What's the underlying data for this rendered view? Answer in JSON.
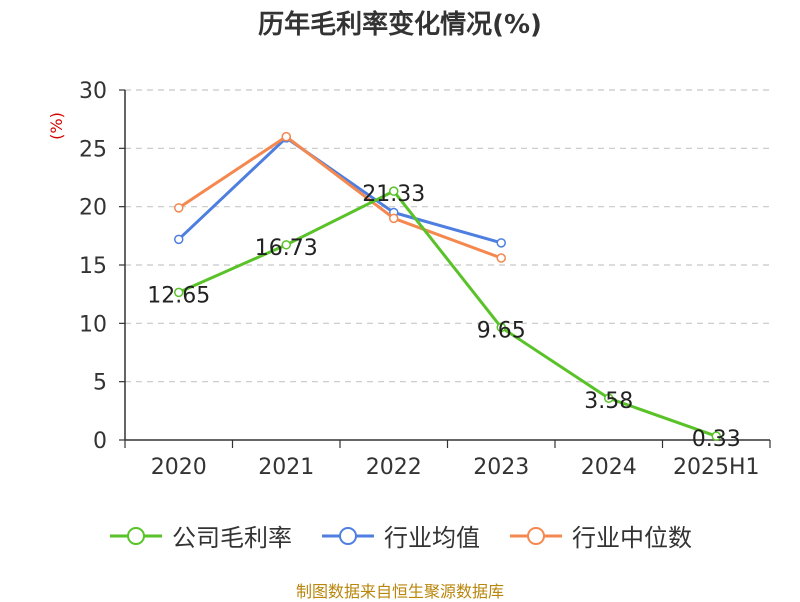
{
  "chart_data": {
    "type": "line",
    "title": "历年毛利率变化情况(%)",
    "ylabel": "(%)",
    "xlabel": "",
    "categories": [
      "2020",
      "2021",
      "2022",
      "2023",
      "2024",
      "2025H1"
    ],
    "ylim": [
      0,
      30
    ],
    "yticks": [
      0,
      5,
      10,
      15,
      20,
      25,
      30
    ],
    "grid": true,
    "legend_position": "bottom",
    "series": [
      {
        "name": "公司毛利率",
        "color": "#5ac229",
        "values": [
          12.65,
          16.73,
          21.33,
          9.65,
          3.58,
          0.33
        ],
        "labels": [
          "12.65",
          "16.73",
          "21.33",
          "9.65",
          "3.58",
          "0.33"
        ]
      },
      {
        "name": "行业均值",
        "color": "#4e7fe0",
        "values": [
          17.2,
          25.9,
          19.5,
          16.9,
          null,
          null
        ]
      },
      {
        "name": "行业中位数",
        "color": "#f4884f",
        "values": [
          19.9,
          26.0,
          19.0,
          15.6,
          null,
          null
        ]
      }
    ]
  },
  "footer": {
    "source": "制图数据来自恒生聚源数据库"
  }
}
